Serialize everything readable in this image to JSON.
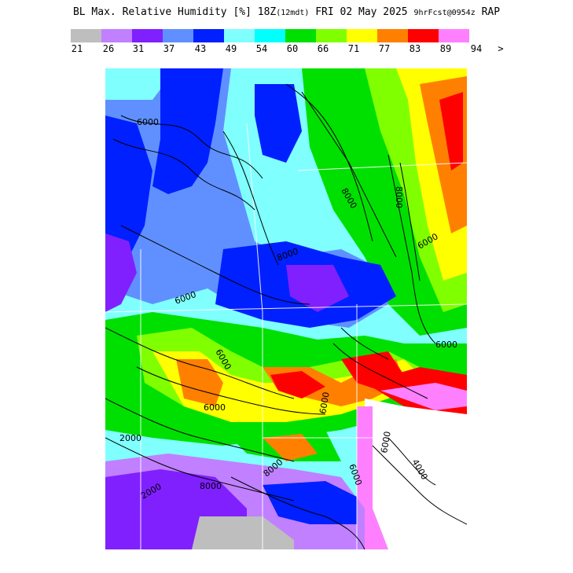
{
  "title": {
    "main": "BL Max. Relative Humidity [%] 18Z",
    "init": "(12mdt)",
    "date": "FRI 02 May 2025",
    "forecast": "9hrFcst@0954z",
    "model": "RAP"
  },
  "legend": {
    "colors": [
      "#bebebe",
      "#c080ff",
      "#8020ff",
      "#6090ff",
      "#0020ff",
      "#80ffff",
      "#00ffff",
      "#00e000",
      "#80ff00",
      "#ffff00",
      "#ff8000",
      "#ff0000",
      "#ff80ff"
    ],
    "labels": [
      "21",
      "26",
      "31",
      "37",
      "43",
      "49",
      "54",
      "60",
      "66",
      "71",
      "77",
      "83",
      "89",
      "94",
      ">"
    ]
  },
  "map": {
    "contour_labels": [
      "6000",
      "8000",
      "8000",
      "6000",
      "8000",
      "6000",
      "6000",
      "6000",
      "2000",
      "6000",
      "6000",
      "6000",
      "4000",
      "2000",
      "8000",
      "8000",
      "6000"
    ]
  }
}
